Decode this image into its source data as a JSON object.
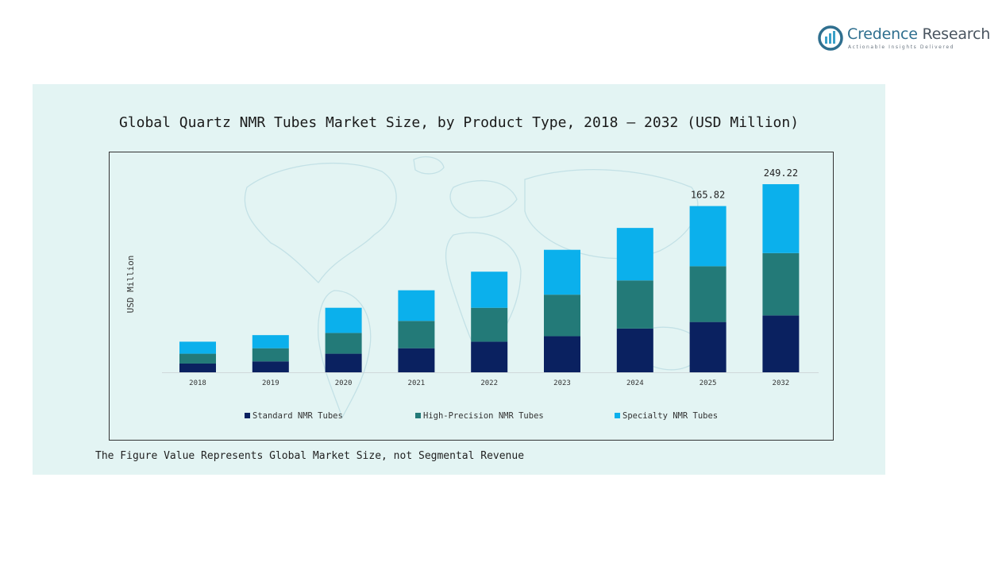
{
  "brand": {
    "name_part1": "Credence",
    "name_part2": " Research",
    "tagline": "Actionable Insights Delivered"
  },
  "footnote": "The Figure Value Represents Global Market Size, not Segmental Revenue",
  "colors": {
    "panel_bg": "#e3f4f3",
    "standard": "#0a2160",
    "high_precision": "#237a78",
    "specialty": "#0bb0ec"
  },
  "chart_data": {
    "type": "bar",
    "stacked": true,
    "title": "Global Quartz NMR Tubes Market Size, by Product Type, 2018 – 2032 (USD Million)",
    "ylabel": "USD Million",
    "xlabel": "",
    "categories": [
      "2018",
      "2019",
      "2020",
      "2021",
      "2022",
      "2023",
      "2024",
      "2025",
      "2032"
    ],
    "series": [
      {
        "name": "Standard NMR Tubes",
        "color": "#0a2160",
        "values": [
          8,
          10,
          17,
          22,
          28,
          33,
          40,
          46,
          52
        ]
      },
      {
        "name": "High-Precision NMR Tubes",
        "color": "#237a78",
        "values": [
          9,
          12,
          19,
          25,
          31,
          38,
          44,
          51,
          57
        ]
      },
      {
        "name": "Specialty NMR Tubes",
        "color": "#0bb0ec",
        "values": [
          11,
          12,
          23,
          28,
          33,
          41,
          48,
          55,
          63
        ]
      }
    ],
    "data_labels": [
      {
        "category": "2025",
        "text": "165.82"
      },
      {
        "category": "2032",
        "text": "249.22"
      }
    ],
    "ylim": [
      0,
      180
    ],
    "grid": false,
    "legend_position": "bottom"
  }
}
